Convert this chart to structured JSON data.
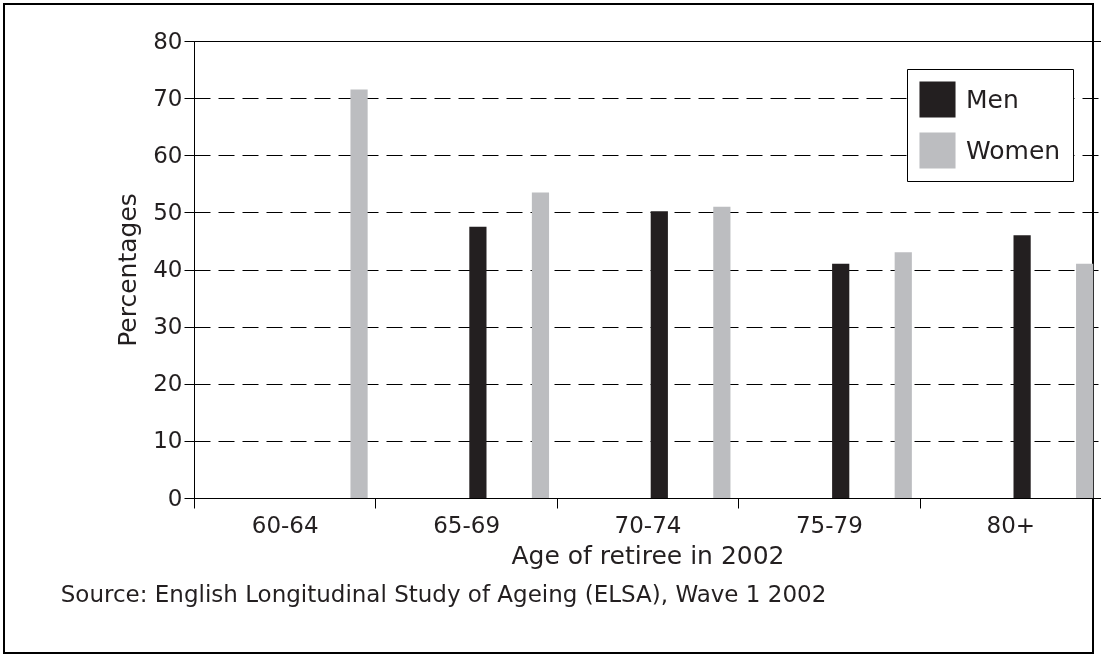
{
  "chart_data": {
    "type": "bar",
    "xlabel": "Age of retiree in 2002",
    "ylabel": "Percentages",
    "categories": [
      "60-64",
      "65-69",
      "70-74",
      "75-79",
      "80+"
    ],
    "series": [
      {
        "name": "Men",
        "color": "#231f20",
        "values": [
          null,
          47.5,
          50.2,
          41,
          46
        ]
      },
      {
        "name": "Women",
        "color": "#bcbdc0",
        "values": [
          71.5,
          53.5,
          51,
          43,
          41
        ]
      }
    ],
    "ylim": [
      0,
      80
    ],
    "yticks": [
      0,
      10,
      20,
      30,
      40,
      50,
      60,
      70,
      80
    ],
    "grid": "y",
    "legend": "top right",
    "annotations": [
      "Source: English Longitudinal Study of Ageing (ELSA), Wave 1 2002"
    ]
  }
}
